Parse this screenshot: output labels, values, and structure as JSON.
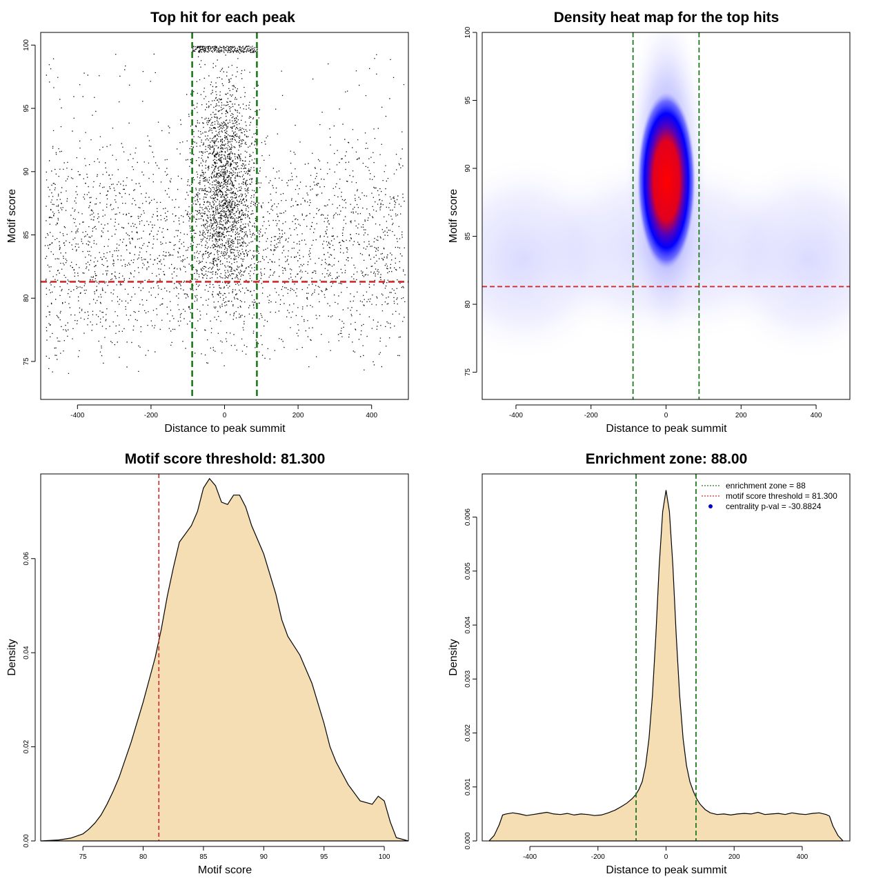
{
  "colors": {
    "zone_line": "#1a7a1a",
    "threshold_line": "#d62728",
    "density_fill": "#f5deb3",
    "points": "#000000",
    "heat_low": "#ffffff",
    "heat_mid": "#0000ff",
    "heat_high": "#ff0000",
    "legend_marker": "#0000cc"
  },
  "chart_data": [
    {
      "type": "scatter",
      "title": "Top hit for each peak",
      "xlabel": "Distance to peak summit",
      "ylabel": "Motif score",
      "xlim": [
        -500,
        500
      ],
      "ylim": [
        72,
        101
      ],
      "xticks": [
        -400,
        -200,
        0,
        200,
        400
      ],
      "yticks": [
        75,
        80,
        85,
        90,
        95,
        100
      ],
      "grid": false,
      "vlines": [
        -88,
        88
      ],
      "hline": 81.3,
      "points_description_only": "dense cloud of about 20000 points; strong central cluster within the enrichment zone",
      "background_density": {
        "score_min": 75,
        "score_max": 99.5,
        "mode": 84
      },
      "center_cluster": {
        "score_mode": 89,
        "score_max": 100
      }
    },
    {
      "type": "heatmap",
      "title": "Density heat map for the top hits",
      "xlabel": "Distance to peak summit",
      "ylabel": "Motif score",
      "xlim": [
        -490,
        490
      ],
      "ylim": [
        73,
        100
      ],
      "xticks": [
        -400,
        -200,
        0,
        200,
        400
      ],
      "yticks": [
        75,
        80,
        85,
        90,
        95,
        100
      ],
      "vlines": [
        -88,
        88
      ],
      "hline": 81.3,
      "peak": {
        "x": 0,
        "y": 89.5
      },
      "color_scale": [
        "white",
        "blue",
        "red"
      ]
    },
    {
      "type": "area",
      "title": "Motif score threshold: 81.300",
      "xlabel": "Motif score",
      "ylabel": "Density",
      "xlim": [
        71.5,
        102
      ],
      "ylim": [
        0,
        0.078
      ],
      "xticks": [
        75,
        80,
        85,
        90,
        95,
        100
      ],
      "yticks": [
        0.0,
        0.02,
        0.04,
        0.06
      ],
      "ytick_labels": [
        "0.00",
        "0.02",
        "0.04",
        "0.06"
      ],
      "vline": 81.3,
      "x": [
        71.5,
        73,
        74,
        75,
        75.5,
        76,
        76.5,
        77,
        77.5,
        78,
        79,
        80,
        81,
        81.5,
        82,
        82.5,
        83,
        84,
        84.5,
        85,
        85.5,
        86,
        86.5,
        87,
        87.5,
        88,
        88.5,
        89,
        90,
        91,
        91.5,
        92,
        93,
        94,
        95,
        95.5,
        96,
        97,
        98,
        99,
        99.5,
        100,
        100.5,
        101,
        102
      ],
      "y": [
        0,
        0.0002,
        0.0006,
        0.0015,
        0.0025,
        0.0038,
        0.0055,
        0.0078,
        0.0105,
        0.0135,
        0.021,
        0.0295,
        0.039,
        0.045,
        0.052,
        0.058,
        0.0635,
        0.067,
        0.07,
        0.075,
        0.077,
        0.0755,
        0.072,
        0.0715,
        0.0735,
        0.0735,
        0.071,
        0.067,
        0.061,
        0.0525,
        0.047,
        0.0435,
        0.0395,
        0.0335,
        0.025,
        0.02,
        0.0168,
        0.012,
        0.0085,
        0.0078,
        0.0095,
        0.0085,
        0.004,
        0.0007,
        0
      ]
    },
    {
      "type": "area",
      "title": "Enrichment zone: 88.00",
      "xlabel": "Distance to peak summit",
      "ylabel": "Density",
      "xlim": [
        -540,
        540
      ],
      "ylim": [
        0,
        0.0068
      ],
      "xticks": [
        -400,
        -200,
        0,
        200,
        400
      ],
      "yticks": [
        0,
        0.001,
        0.002,
        0.003,
        0.004,
        0.005,
        0.006
      ],
      "ytick_labels": [
        "0.000",
        "0.001",
        "0.002",
        "0.003",
        "0.004",
        "0.005",
        "0.006"
      ],
      "vlines": [
        -88,
        88
      ],
      "x": [
        -520,
        -505,
        -490,
        -480,
        -470,
        -450,
        -430,
        -410,
        -390,
        -370,
        -350,
        -330,
        -310,
        -290,
        -270,
        -250,
        -230,
        -210,
        -190,
        -170,
        -150,
        -130,
        -115,
        -100,
        -90,
        -80,
        -70,
        -60,
        -50,
        -40,
        -30,
        -20,
        -10,
        0,
        10,
        20,
        30,
        40,
        50,
        60,
        70,
        80,
        90,
        100,
        115,
        130,
        150,
        170,
        190,
        210,
        230,
        250,
        270,
        290,
        310,
        330,
        350,
        370,
        390,
        410,
        430,
        450,
        470,
        480,
        490,
        505,
        520
      ],
      "y": [
        0,
        0.0001,
        0.0003,
        0.00048,
        0.0005,
        0.00052,
        0.0005,
        0.00047,
        0.00049,
        0.00051,
        0.00053,
        0.0005,
        0.00049,
        0.00051,
        0.00048,
        0.0005,
        0.00049,
        0.00047,
        0.00048,
        0.00052,
        0.00057,
        0.00064,
        0.0007,
        0.00078,
        0.00085,
        0.00095,
        0.0011,
        0.0014,
        0.0019,
        0.0027,
        0.0038,
        0.0051,
        0.0061,
        0.0065,
        0.0061,
        0.0051,
        0.0038,
        0.0027,
        0.0019,
        0.0014,
        0.0011,
        0.00092,
        0.00078,
        0.00068,
        0.00058,
        0.00052,
        0.00049,
        0.0005,
        0.00048,
        0.0005,
        0.00051,
        0.0005,
        0.00053,
        0.00049,
        0.0005,
        0.00051,
        0.00049,
        0.00052,
        0.0005,
        0.00049,
        0.00051,
        0.00052,
        0.00049,
        0.00046,
        0.00028,
        0.0001,
        0
      ],
      "legend": {
        "placement": "top-right",
        "entries": [
          "enrichment zone = 88",
          "motif score threshold = 81.300",
          "centrality p-val = -30.8824"
        ]
      }
    }
  ]
}
